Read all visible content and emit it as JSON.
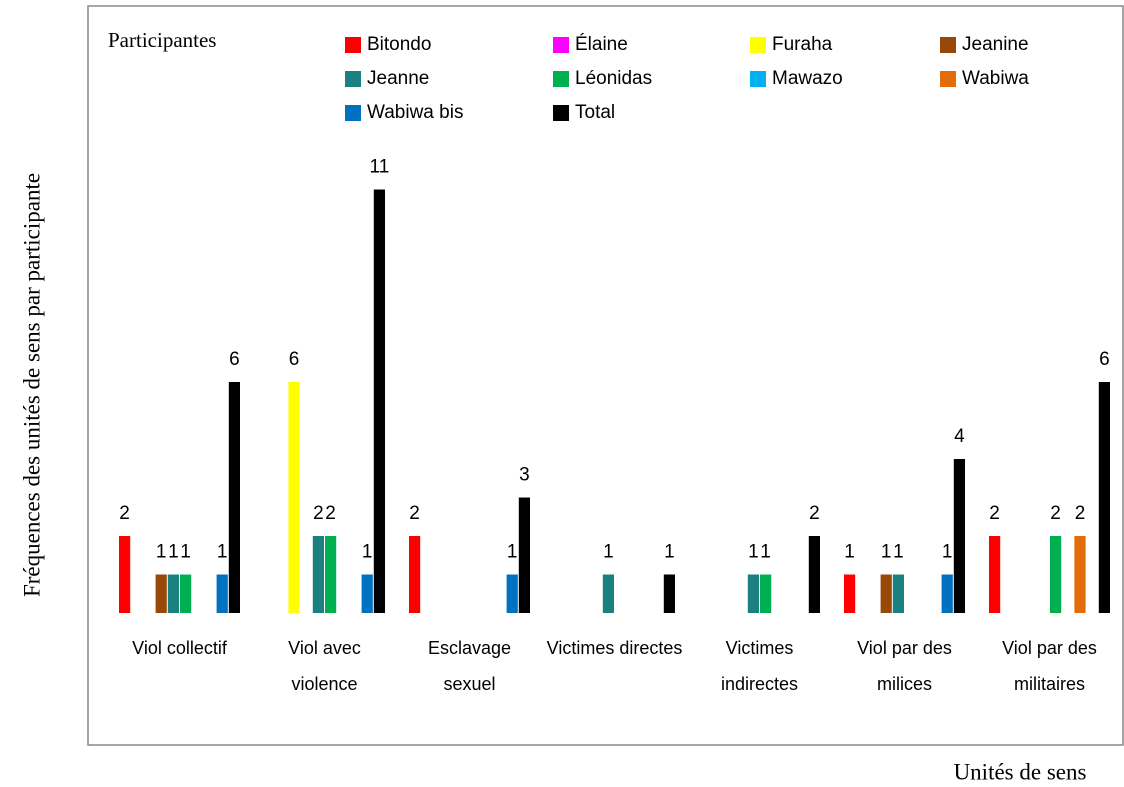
{
  "chart_data": {
    "type": "bar",
    "legend_title": "Participantes",
    "x_label": "Unités de sens",
    "y_label": "Fréquences des unités de sens par participante",
    "categories": [
      "Viol collectif",
      "Viol avec violence",
      "Esclavage sexuel",
      "Victimes directes",
      "Victimes indirectes",
      "Viol par des milices",
      "Viol par des militaires"
    ],
    "series": [
      {
        "name": "Bitondo",
        "color": "#ff0000",
        "values": [
          2,
          null,
          2,
          null,
          null,
          1,
          2
        ]
      },
      {
        "name": "Élaine",
        "color": "#ff00ff",
        "values": [
          null,
          null,
          null,
          null,
          null,
          null,
          null
        ]
      },
      {
        "name": "Furaha",
        "color": "#ffff00",
        "values": [
          null,
          6,
          null,
          null,
          null,
          null,
          null
        ]
      },
      {
        "name": "Jeanine",
        "color": "#984807",
        "values": [
          1,
          null,
          null,
          null,
          null,
          1,
          null
        ]
      },
      {
        "name": "Jeanne",
        "color": "#1b8080",
        "values": [
          1,
          2,
          null,
          1,
          1,
          1,
          null
        ]
      },
      {
        "name": "Léonidas",
        "color": "#00b050",
        "values": [
          1,
          2,
          null,
          null,
          1,
          null,
          2
        ]
      },
      {
        "name": "Mawazo",
        "color": "#00b0f0",
        "values": [
          null,
          null,
          null,
          null,
          null,
          null,
          null
        ]
      },
      {
        "name": "Wabiwa",
        "color": "#e36c09",
        "values": [
          null,
          null,
          null,
          null,
          null,
          null,
          2
        ]
      },
      {
        "name": "Wabiwa bis",
        "color": "#0070c0",
        "values": [
          1,
          1,
          1,
          null,
          null,
          1,
          null
        ]
      },
      {
        "name": "Total",
        "color": "#000000",
        "values": [
          6,
          11,
          3,
          1,
          2,
          4,
          6
        ]
      }
    ],
    "ylim": [
      0,
      12
    ],
    "grid": false
  }
}
